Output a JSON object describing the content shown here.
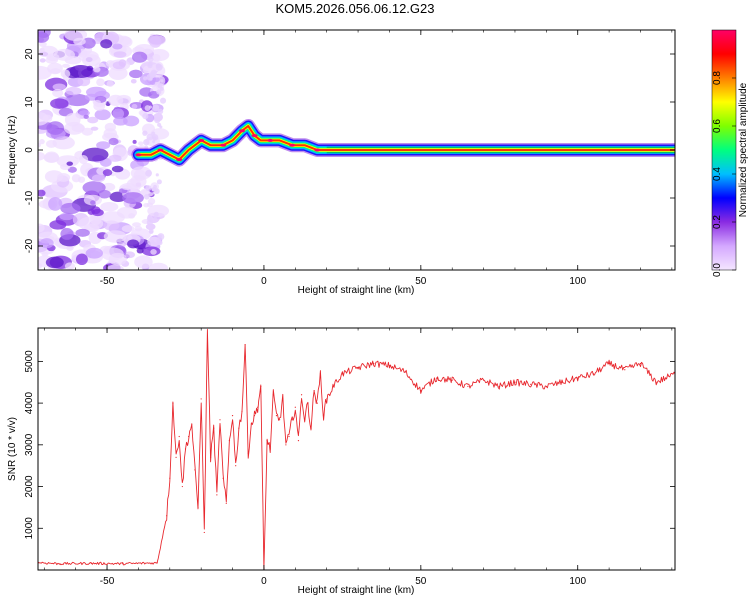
{
  "title": "KOM5.2026.056.06.12.G23",
  "chart_data": [
    {
      "type": "heatmap",
      "name": "spectrogram",
      "xlabel": "Height of straight line (km)",
      "ylabel": "Frequency (Hz)",
      "xlim": [
        -72,
        131
      ],
      "ylim": [
        -25,
        25
      ],
      "xticks": [
        -50,
        0,
        50,
        100
      ],
      "yticks": [
        -20,
        -10,
        0,
        10,
        20
      ],
      "colorbar": {
        "label": "Normalized spectral amplitude",
        "range": [
          0,
          1
        ],
        "ticks": [
          0.0,
          0.2,
          0.4,
          0.6,
          0.8
        ],
        "colors": [
          "#f4e6ff",
          "#d4a8ff",
          "#8a2be2",
          "#0000ff",
          "#00bfff",
          "#00ff7f",
          "#7fff00",
          "#ffff00",
          "#ff7f00",
          "#ff0000",
          "#ff0066"
        ]
      },
      "ridge": {
        "description": "dominant frequency trace",
        "x": [
          -40,
          -36,
          -33,
          -30,
          -27,
          -24,
          -20,
          -17,
          -13,
          -10,
          -7,
          -5,
          -3,
          -1,
          2,
          5,
          9,
          13,
          17,
          22,
          30,
          45,
          60,
          80,
          100,
          120,
          131
        ],
        "y": [
          -1,
          -1,
          0,
          -1,
          -2,
          0,
          2,
          1,
          1,
          2,
          4,
          5,
          3,
          2,
          2,
          2,
          1,
          1,
          0,
          0,
          0,
          0,
          0,
          0,
          0,
          0,
          0
        ]
      },
      "noise_region_x": [
        -72,
        -36
      ]
    },
    {
      "type": "line",
      "name": "snr",
      "xlabel": "Height of straight line (km)",
      "ylabel": "SNR (10 * v/v)",
      "xlim": [
        -72,
        131
      ],
      "ylim": [
        0,
        5800
      ],
      "xticks": [
        -50,
        0,
        50,
        100
      ],
      "yticks": [
        1000,
        2000,
        3000,
        4000,
        5000
      ],
      "color": "#e8282e",
      "x": [
        -72,
        -65,
        -55,
        -45,
        -34,
        -31,
        -30,
        -29,
        -28,
        -27,
        -26,
        -25,
        -24,
        -23,
        -22,
        -21,
        -20,
        -19,
        -18,
        -17,
        -16,
        -15,
        -14,
        -13,
        -12,
        -11,
        -10,
        -9,
        -8,
        -7,
        -6,
        -5,
        -4,
        -3,
        -2,
        -1,
        0,
        1,
        2,
        3,
        4,
        5,
        6,
        7,
        8,
        9,
        10,
        11,
        12,
        13,
        14,
        15,
        16,
        17,
        18,
        19,
        20,
        22,
        25,
        30,
        35,
        40,
        45,
        50,
        55,
        60,
        65,
        70,
        75,
        80,
        85,
        90,
        95,
        100,
        105,
        110,
        115,
        120,
        125,
        131
      ],
      "values": [
        180,
        150,
        160,
        150,
        170,
        1300,
        2200,
        4000,
        2700,
        3200,
        2000,
        2900,
        3200,
        3500,
        2400,
        1500,
        4100,
        900,
        5800,
        2700,
        3400,
        1800,
        3600,
        2200,
        1600,
        3100,
        3700,
        2500,
        3400,
        3800,
        5400,
        2800,
        3500,
        3700,
        3900,
        4400,
        0,
        3100,
        2900,
        4200,
        3700,
        3600,
        4100,
        3000,
        3200,
        3600,
        3900,
        3100,
        4200,
        3600,
        4000,
        3400,
        4300,
        4000,
        4700,
        3700,
        4100,
        4400,
        4700,
        4850,
        4950,
        4900,
        4750,
        4300,
        4600,
        4550,
        4400,
        4550,
        4400,
        4500,
        4450,
        4400,
        4500,
        4600,
        4700,
        4950,
        4800,
        4950,
        4500,
        4700
      ]
    }
  ]
}
